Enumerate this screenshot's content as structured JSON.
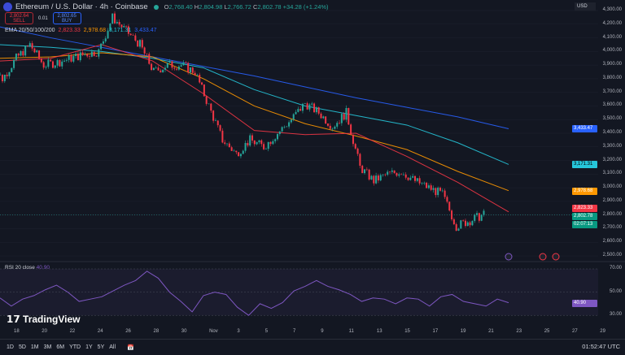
{
  "header": {
    "title": "Ethereum / U.S. Dollar · 4h · Coinbase",
    "open": "2,768.40",
    "high": "2,804.98",
    "low": "2,766.72",
    "close": "2,802.78",
    "change": "+34.28 (+1.24%)",
    "o": "O",
    "h": "H",
    "l": "L",
    "c": "C"
  },
  "trade": {
    "sell_price": "2,802.64",
    "sell_label": "SELL",
    "spread": "0.01",
    "buy_price": "2,802.65",
    "buy_label": "BUY"
  },
  "ema": {
    "label": "EMA 20/50/100/200",
    "v20": "2,823.33",
    "v50": "2,978.68",
    "v100": "3,171.31",
    "v200": "3,433.47"
  },
  "colors": {
    "up": "#26a69a",
    "down": "#f23645",
    "ema20": "#f23645",
    "ema50": "#ff9800",
    "ema100": "#26c6da",
    "ema200": "#2962ff",
    "rsi": "#7e57c2"
  },
  "price_axis": {
    "currency": "USD",
    "ticks": [
      "4,300.00",
      "4,200.00",
      "4,100.00",
      "4,000.00",
      "3,900.00",
      "3,800.00",
      "3,700.00",
      "3,600.00",
      "3,500.00",
      "3,400.00",
      "3,300.00",
      "3,200.00",
      "3,100.00",
      "3,000.00",
      "2,900.00",
      "2,800.00",
      "2,700.00",
      "2,600.00",
      "2,500.00"
    ],
    "tags": {
      "ema200": "3,433.47",
      "ema100": "3,171.31",
      "ema50": "2,978.68",
      "ema20": "2,823.33",
      "last": "2,802.78",
      "countdown": "02:07:13"
    }
  },
  "rsi": {
    "label": "RSI 20 close",
    "value": "40.90",
    "ticks": [
      "70.00",
      "50.00",
      "30.00"
    ]
  },
  "x_axis": [
    "18",
    "20",
    "22",
    "24",
    "26",
    "28",
    "30",
    "Nov",
    "3",
    "5",
    "7",
    "9",
    "11",
    "13",
    "15",
    "17",
    "19",
    "21",
    "23",
    "25",
    "27",
    "29"
  ],
  "brand": "TradingView",
  "ranges": [
    "1D",
    "5D",
    "1M",
    "3M",
    "6M",
    "YTD",
    "1Y",
    "5Y",
    "All"
  ],
  "clock": "01:52:47 UTC",
  "chart_data": {
    "type": "candlestick",
    "day_start": 17,
    "daily_close": [
      3900,
      3800,
      3950,
      4050,
      3900,
      3920,
      3950,
      3980,
      4000,
      4250,
      4150,
      4050,
      3850,
      3900,
      3900,
      3850,
      3600,
      3350,
      3250,
      3350,
      3300,
      3400,
      3500,
      3620,
      3550,
      3450,
      3550,
      3150,
      3050,
      3100,
      3120,
      3050,
      3000,
      2950,
      2720,
      2760,
      2802
    ],
    "ema200": [
      4180,
      4100,
      4030,
      3960,
      3890,
      3820,
      3740,
      3660,
      3590,
      3520,
      3433
    ],
    "ema100": [
      4050,
      4030,
      4000,
      3950,
      3880,
      3720,
      3600,
      3530,
      3460,
      3330,
      3171
    ],
    "ema50": [
      3950,
      3960,
      3990,
      3960,
      3800,
      3600,
      3470,
      3380,
      3280,
      3120,
      2979
    ],
    "ema20": [
      3930,
      3950,
      4050,
      3930,
      3690,
      3420,
      3390,
      3400,
      3230,
      3040,
      2823
    ],
    "rsi_points": [
      45,
      38,
      44,
      47,
      52,
      56,
      50,
      42,
      44,
      46,
      51,
      56,
      60,
      68,
      62,
      50,
      42,
      33,
      47,
      50,
      48,
      37,
      30,
      40,
      36,
      41,
      51,
      55,
      60,
      55,
      52,
      48,
      42,
      45,
      44,
      40,
      45,
      44,
      38,
      46,
      48,
      42,
      40,
      38,
      44,
      40.9
    ]
  }
}
